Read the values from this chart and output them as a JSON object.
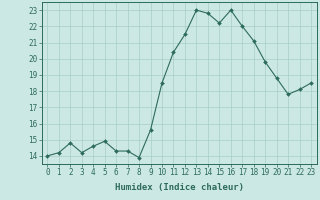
{
  "x": [
    0,
    1,
    2,
    3,
    4,
    5,
    6,
    7,
    8,
    9,
    10,
    11,
    12,
    13,
    14,
    15,
    16,
    17,
    18,
    19,
    20,
    21,
    22,
    23
  ],
  "y": [
    14.0,
    14.2,
    14.8,
    14.2,
    14.6,
    14.9,
    14.3,
    14.3,
    13.9,
    15.6,
    18.5,
    20.4,
    21.5,
    23.0,
    22.8,
    22.2,
    23.0,
    22.0,
    21.1,
    19.8,
    18.8,
    17.8,
    18.1,
    18.5
  ],
  "line_color": "#2d6b5e",
  "marker": "D",
  "marker_size": 2.0,
  "bg_color": "#cce8e4",
  "grid_color": "#a8cec9",
  "xlabel": "Humidex (Indice chaleur)",
  "ylim": [
    13.5,
    23.5
  ],
  "xlim": [
    -0.5,
    23.5
  ],
  "yticks": [
    14,
    15,
    16,
    17,
    18,
    19,
    20,
    21,
    22,
    23
  ],
  "xticks": [
    0,
    1,
    2,
    3,
    4,
    5,
    6,
    7,
    8,
    9,
    10,
    11,
    12,
    13,
    14,
    15,
    16,
    17,
    18,
    19,
    20,
    21,
    22,
    23
  ],
  "tick_color": "#2d6b5e",
  "label_fontsize": 6.5,
  "tick_fontsize": 5.5,
  "linewidth": 0.8
}
